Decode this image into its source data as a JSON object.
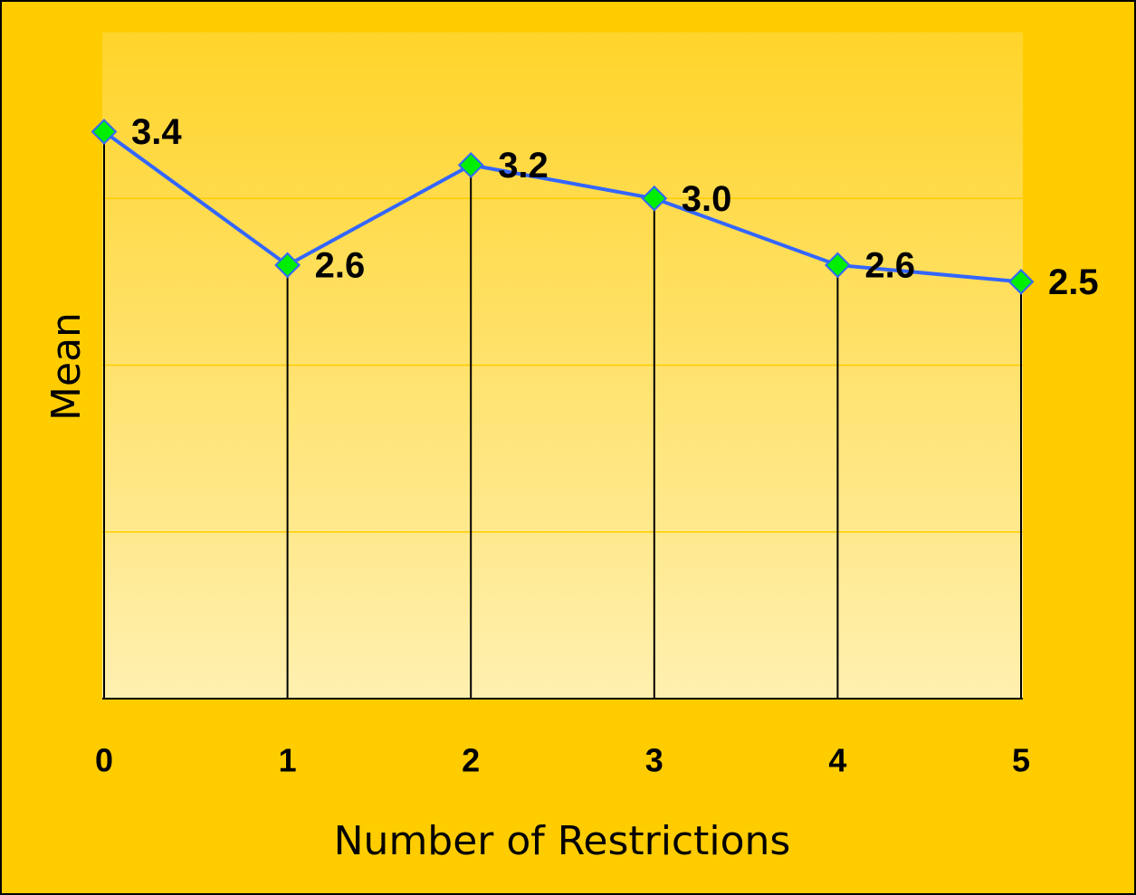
{
  "chart_data": {
    "type": "line",
    "x_label": "Number of Restrictions",
    "y_label": "Mean",
    "categories": [
      "0",
      "1",
      "2",
      "3",
      "4",
      "5"
    ],
    "series": [
      {
        "name": "Mean",
        "color": "#3366ff",
        "values": [
          3.4,
          2.6,
          3.2,
          3.0,
          2.6,
          2.5
        ],
        "value_labels": [
          "3.4",
          "2.6",
          "3.2",
          "3.0",
          "2.6",
          "2.5"
        ]
      }
    ],
    "ylim": [
      0,
      4
    ],
    "yticks": [
      0,
      1,
      2,
      3,
      4
    ],
    "grid": true,
    "marker_color": "#00ee00"
  }
}
